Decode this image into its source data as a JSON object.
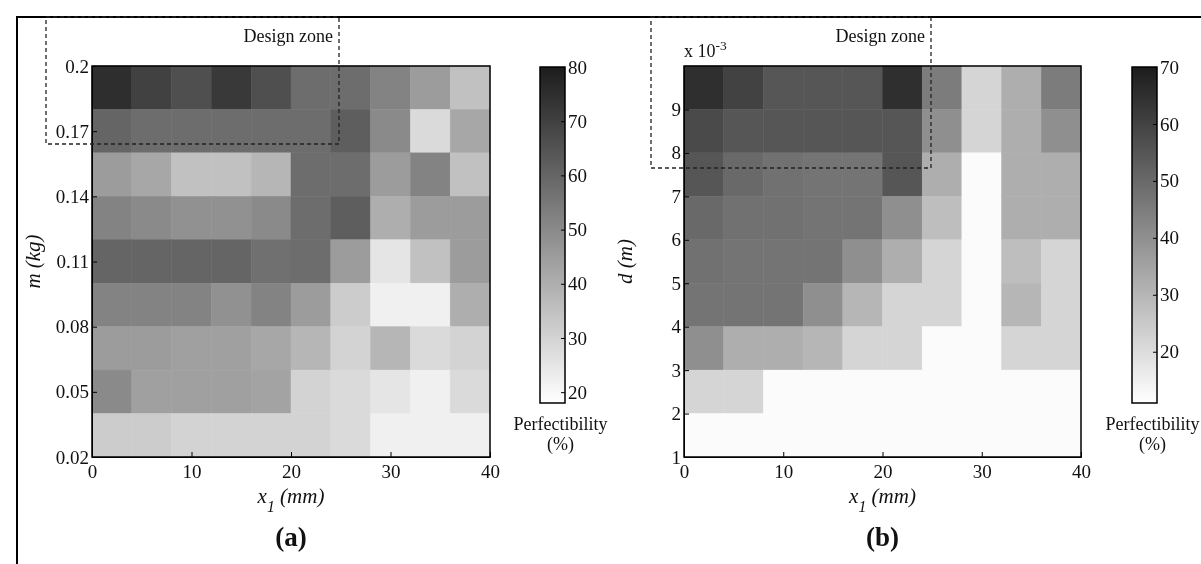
{
  "chart_data": [
    {
      "type": "heatmap",
      "title": "(a)",
      "xlabel": "x$_{1}$ (mm)",
      "ylabel": "m (kg)",
      "clabel": "Perfectibility (%)",
      "annotations": [
        "Design zone"
      ],
      "xlim": [
        0,
        40
      ],
      "xticks": [
        0,
        10,
        20,
        30,
        40
      ],
      "ylim": [
        0.02,
        0.2
      ],
      "yticks": [
        0.02,
        0.05,
        0.08,
        0.11,
        0.14,
        0.17,
        0.2
      ],
      "clim": [
        18,
        80
      ],
      "cticks": [
        20,
        30,
        40,
        50,
        60,
        70,
        80
      ],
      "cells": [
        [
          75,
          70,
          66,
          72,
          66,
          58,
          58,
          52,
          45,
          35
        ],
        [
          60,
          58,
          58,
          58,
          58,
          58,
          62,
          50,
          28,
          42
        ],
        [
          45,
          42,
          35,
          35,
          38,
          58,
          58,
          45,
          52,
          35
        ],
        [
          52,
          50,
          48,
          48,
          50,
          58,
          62,
          40,
          45,
          45
        ],
        [
          60,
          60,
          60,
          60,
          57,
          58,
          45,
          25,
          35,
          45
        ],
        [
          52,
          52,
          52,
          48,
          52,
          45,
          32,
          22,
          22,
          40
        ],
        [
          45,
          45,
          44,
          44,
          42,
          38,
          30,
          38,
          28,
          30
        ],
        [
          50,
          44,
          44,
          44,
          43,
          30,
          28,
          25,
          22,
          28
        ],
        [
          32,
          32,
          30,
          30,
          30,
          30,
          28,
          22,
          22,
          22
        ]
      ]
    },
    {
      "type": "heatmap",
      "title": "(b)",
      "xlabel": "x$_{1}$ (mm)",
      "ylabel": "d (m)",
      "clabel": "Perfectibility (%)",
      "annotations": [
        "Design zone",
        "x 10$^{-3}$"
      ],
      "xlim": [
        0,
        40
      ],
      "xticks": [
        0,
        10,
        20,
        30,
        40
      ],
      "ylim": [
        1,
        10
      ],
      "yticks": [
        1,
        2,
        3,
        4,
        5,
        6,
        7,
        8,
        9
      ],
      "clim": [
        11,
        70
      ],
      "cticks": [
        20,
        30,
        40,
        50,
        60,
        70
      ],
      "cells": [
        [
          65,
          60,
          55,
          55,
          55,
          65,
          45,
          22,
          32,
          45
        ],
        [
          58,
          55,
          55,
          55,
          55,
          55,
          40,
          22,
          32,
          40
        ],
        [
          55,
          50,
          48,
          47,
          47,
          55,
          32,
          12,
          32,
          32
        ],
        [
          50,
          48,
          48,
          47,
          47,
          40,
          28,
          12,
          32,
          32
        ],
        [
          48,
          47,
          47,
          47,
          40,
          32,
          22,
          12,
          28,
          22
        ],
        [
          47,
          47,
          47,
          40,
          30,
          22,
          22,
          12,
          30,
          22
        ],
        [
          40,
          32,
          32,
          30,
          22,
          22,
          12,
          12,
          22,
          22
        ],
        [
          22,
          22,
          12,
          12,
          12,
          12,
          12,
          12,
          12,
          12
        ],
        [
          12,
          12,
          12,
          12,
          12,
          12,
          12,
          12,
          12,
          12
        ]
      ]
    }
  ]
}
